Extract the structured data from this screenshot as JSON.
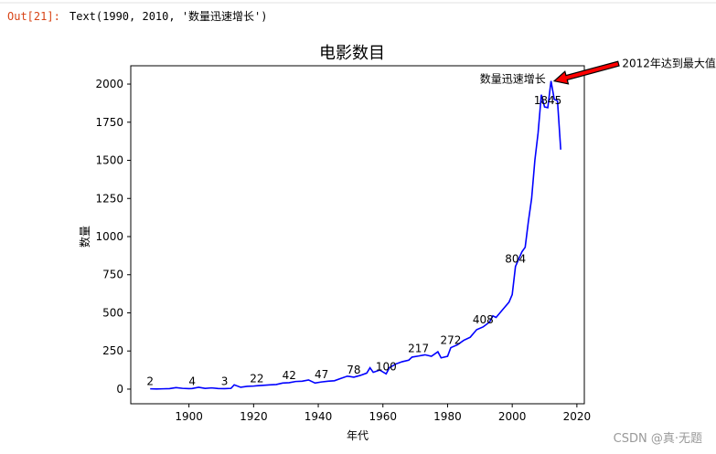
{
  "output_prompt": "Out[21]:",
  "output_text": "Text(1990, 2010, '数量迅速增长')",
  "watermark": "CSDN @真·无题",
  "chart_data": {
    "type": "line",
    "title": "电影数目",
    "x_label": "年代",
    "y_label": "数量",
    "x": [
      1888,
      1890,
      1892,
      1894,
      1896,
      1898,
      1900,
      1901,
      1903,
      1905,
      1907,
      1909,
      1911,
      1913,
      1914,
      1916,
      1918,
      1920,
      1921,
      1923,
      1925,
      1927,
      1929,
      1931,
      1933,
      1935,
      1937,
      1939,
      1941,
      1943,
      1945,
      1947,
      1949,
      1951,
      1953,
      1955,
      1956,
      1957,
      1959,
      1961,
      1962,
      1964,
      1966,
      1968,
      1969,
      1971,
      1973,
      1975,
      1977,
      1978,
      1980,
      1981,
      1983,
      1985,
      1987,
      1989,
      1991,
      1993,
      1994,
      1995,
      1997,
      1999,
      2000,
      2001,
      2003,
      2004,
      2005,
      2006,
      2007,
      2008,
      2009,
      2010,
      2011,
      2012,
      2013,
      2014,
      2015
    ],
    "series": [
      {
        "color": "#0000ff",
        "values": [
          2,
          1,
          2,
          3,
          10,
          5,
          3,
          4,
          12,
          5,
          8,
          4,
          3,
          5,
          28,
          12,
          18,
          20,
          22,
          25,
          28,
          30,
          40,
          42,
          50,
          52,
          60,
          40,
          47,
          52,
          55,
          70,
          85,
          78,
          90,
          105,
          140,
          110,
          125,
          100,
          140,
          165,
          180,
          190,
          210,
          217,
          225,
          215,
          245,
          205,
          215,
          272,
          290,
          320,
          340,
          390,
          408,
          440,
          480,
          470,
          520,
          570,
          620,
          804,
          900,
          930,
          1100,
          1250,
          1500,
          1680,
          1930,
          1850,
          1845,
          2020,
          1900,
          1890,
          1570
        ]
      }
    ],
    "point_labels": {
      "x": [
        1888,
        1901,
        1911,
        1921,
        1931,
        1941,
        1951,
        1961,
        1971,
        1981,
        1991,
        2001,
        2011
      ],
      "values": [
        2,
        4,
        3,
        22,
        42,
        47,
        78,
        100,
        217,
        272,
        408,
        804,
        1845
      ]
    },
    "annotations": [
      {
        "text": "数量迅速增长",
        "x": 1990,
        "y": 2010
      },
      {
        "text": "2012年达到最大值",
        "x": 2034,
        "y": 2110,
        "xy": [
          2013,
          2020
        ],
        "arrow_color": "#ff0000"
      }
    ],
    "xlim": [
      1882,
      2022.3
    ],
    "ylim": [
      -96,
      2120
    ],
    "xticks": [
      1900,
      1920,
      1940,
      1960,
      1980,
      2000,
      2020
    ],
    "yticks": [
      0,
      250,
      500,
      750,
      1000,
      1250,
      1500,
      1750,
      2000
    ]
  }
}
